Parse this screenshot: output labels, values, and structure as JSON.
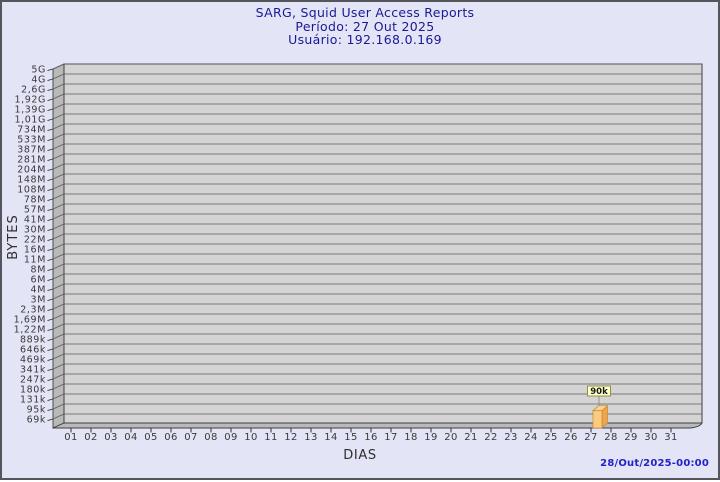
{
  "header": {
    "title": "SARG, Squid User Access Reports",
    "period": "Período: 27 Out 2025",
    "user": "Usuário: 192.168.0.169"
  },
  "footer": {
    "generated": "28/Out/2025-00:00"
  },
  "colors": {
    "background": "#e4e4f7",
    "frame_border": "#55555e",
    "title_text": "#191994",
    "footer_text": "#2222c8",
    "plot_bg": "#d4d4d4",
    "wall": "#b9b9b9",
    "frame": "#3f3f3f",
    "gridline": "#5c5c5c",
    "tick": "#333333",
    "tick_text": "#3a3a3a",
    "bar_front": "#fccb7f",
    "bar_side": "#f1a44a",
    "bar_top": "#fcd292",
    "bar_outline": "#c08a36",
    "label_box_bg": "#ffffc6",
    "label_box_border": "#90904a",
    "label_box_text": "#1a1a1a",
    "connector": "#909090"
  },
  "chart_data": {
    "type": "bar",
    "title": "SARG, Squid User Access Reports",
    "subtitle1": "Período: 27 Out 2025",
    "subtitle2": "Usuário: 192.168.0.169",
    "xlabel": "DIAS",
    "ylabel": "BYTES",
    "yscale": "log",
    "grid": "horizontal",
    "legend": null,
    "categories": [
      "01",
      "02",
      "03",
      "04",
      "05",
      "06",
      "07",
      "08",
      "09",
      "10",
      "11",
      "12",
      "13",
      "14",
      "15",
      "16",
      "17",
      "18",
      "19",
      "20",
      "21",
      "22",
      "23",
      "24",
      "25",
      "26",
      "27",
      "28",
      "29",
      "30",
      "31"
    ],
    "values": [
      0,
      0,
      0,
      0,
      0,
      0,
      0,
      0,
      0,
      0,
      0,
      0,
      0,
      0,
      0,
      0,
      0,
      0,
      0,
      0,
      0,
      0,
      0,
      0,
      0,
      0,
      90000,
      0,
      0,
      0,
      0
    ],
    "bar_labels": {
      "27": "90k"
    },
    "ytick_labels": [
      "5G",
      "4G",
      "2,6G",
      "1,92G",
      "1,39G",
      "1,01G",
      "734M",
      "533M",
      "387M",
      "281M",
      "204M",
      "148M",
      "108M",
      "78M",
      "57M",
      "41M",
      "30M",
      "22M",
      "16M",
      "11M",
      "8M",
      "6M",
      "4M",
      "3M",
      "2,3M",
      "1,69M",
      "1,22M",
      "889k",
      "646k",
      "469k",
      "341k",
      "247k",
      "180k",
      "131k",
      "95k",
      "69k"
    ],
    "ylim_labels": [
      "69k",
      "5G"
    ]
  }
}
